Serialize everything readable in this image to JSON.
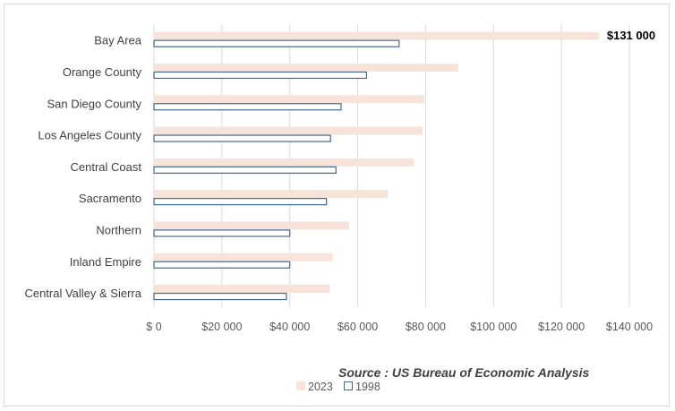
{
  "chart_data": {
    "type": "bar",
    "orientation": "horizontal",
    "categories": [
      "Bay Area",
      "Orange County",
      "San Diego County",
      "Los Angeles County",
      "Central Coast",
      "Sacramento",
      "Northern",
      "Inland Empire",
      "Central Valley & Sierra"
    ],
    "series": [
      {
        "name": "2023",
        "values": [
          131000,
          89600,
          79600,
          79100,
          76600,
          68900,
          57500,
          52600,
          51800
        ],
        "color": "#f6e3d9"
      },
      {
        "name": "1998",
        "values": [
          72200,
          62600,
          55100,
          52000,
          53600,
          50800,
          40000,
          40000,
          39000
        ],
        "color": "#ffffff",
        "stroke": "#44688f"
      }
    ],
    "xlim": [
      0,
      140000
    ],
    "xticks": [
      0,
      20000,
      40000,
      60000,
      80000,
      100000,
      120000,
      140000
    ],
    "xtick_labels": [
      "$ 0",
      "$20 000",
      "$40 000",
      "$60 000",
      "$80 000",
      "$100 000",
      "$120 000",
      "$140 000"
    ],
    "data_labels": [
      {
        "category": "Bay Area",
        "series": "2023",
        "text": "$131 000"
      }
    ],
    "grid": "vertical",
    "legend": "bottom",
    "source": "Source : US Bureau of Economic Analysis"
  }
}
